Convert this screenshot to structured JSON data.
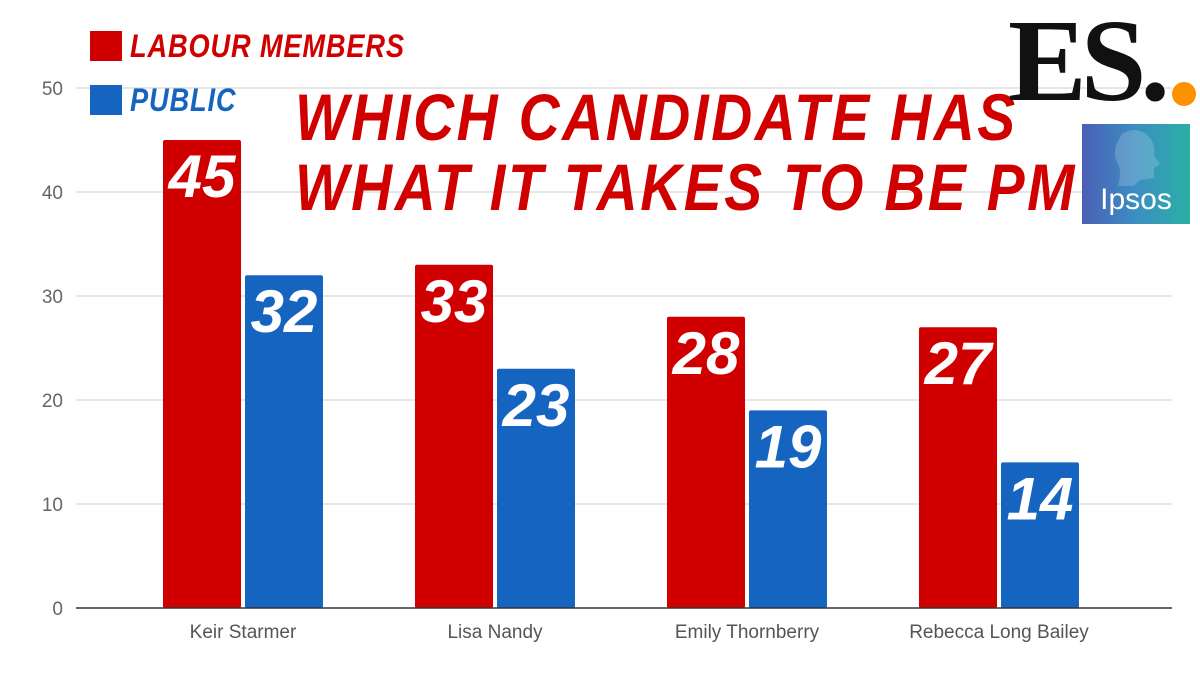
{
  "chart_data": {
    "type": "bar",
    "title": "WHICH CANDIDATE HAS WHAT IT TAKES TO BE PM?",
    "title_lines": [
      "WHICH CANDIDATE HAS",
      "WHAT IT TAKES TO BE PM?"
    ],
    "categories": [
      "Keir Starmer",
      "Lisa Nandy",
      "Emily Thornberry",
      "Rebecca Long Bailey"
    ],
    "series": [
      {
        "name": "LABOUR MEMBERS",
        "color": "#d10000",
        "values": [
          45,
          33,
          28,
          27
        ]
      },
      {
        "name": "PUBLIC",
        "color": "#1565c0",
        "values": [
          32,
          23,
          19,
          14
        ]
      }
    ],
    "ylim": [
      0,
      50
    ],
    "yticks": [
      0,
      10,
      20,
      30,
      40,
      50
    ],
    "grid": true,
    "legend_position": "top-left"
  },
  "logos": {
    "publisher": "ES.",
    "pollster": "Ipsos"
  }
}
